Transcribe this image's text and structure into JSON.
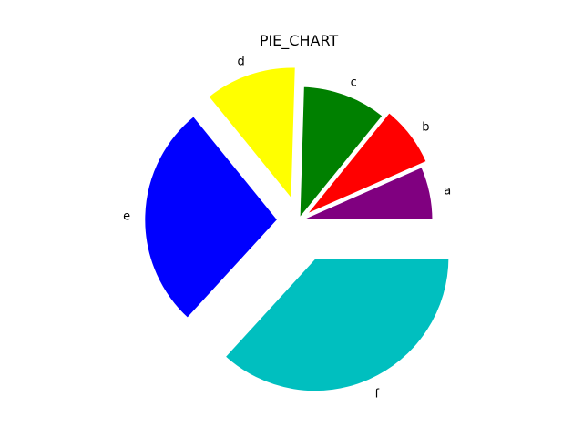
{
  "chart_data": {
    "type": "pie",
    "title": "PIE_CHART",
    "labels": [
      "a",
      "b",
      "c",
      "d",
      "e",
      "f"
    ],
    "values": [
      7,
      8,
      11,
      12,
      29,
      39
    ],
    "colors": [
      "#800080",
      "#ff0000",
      "#008000",
      "#ffff00",
      "#0000ff",
      "#00bfbf"
    ],
    "explode": [
      0,
      0.05,
      0,
      0.15,
      0.15,
      0.3
    ],
    "start_angle_deg": 0,
    "direction": "counterclockwise"
  }
}
